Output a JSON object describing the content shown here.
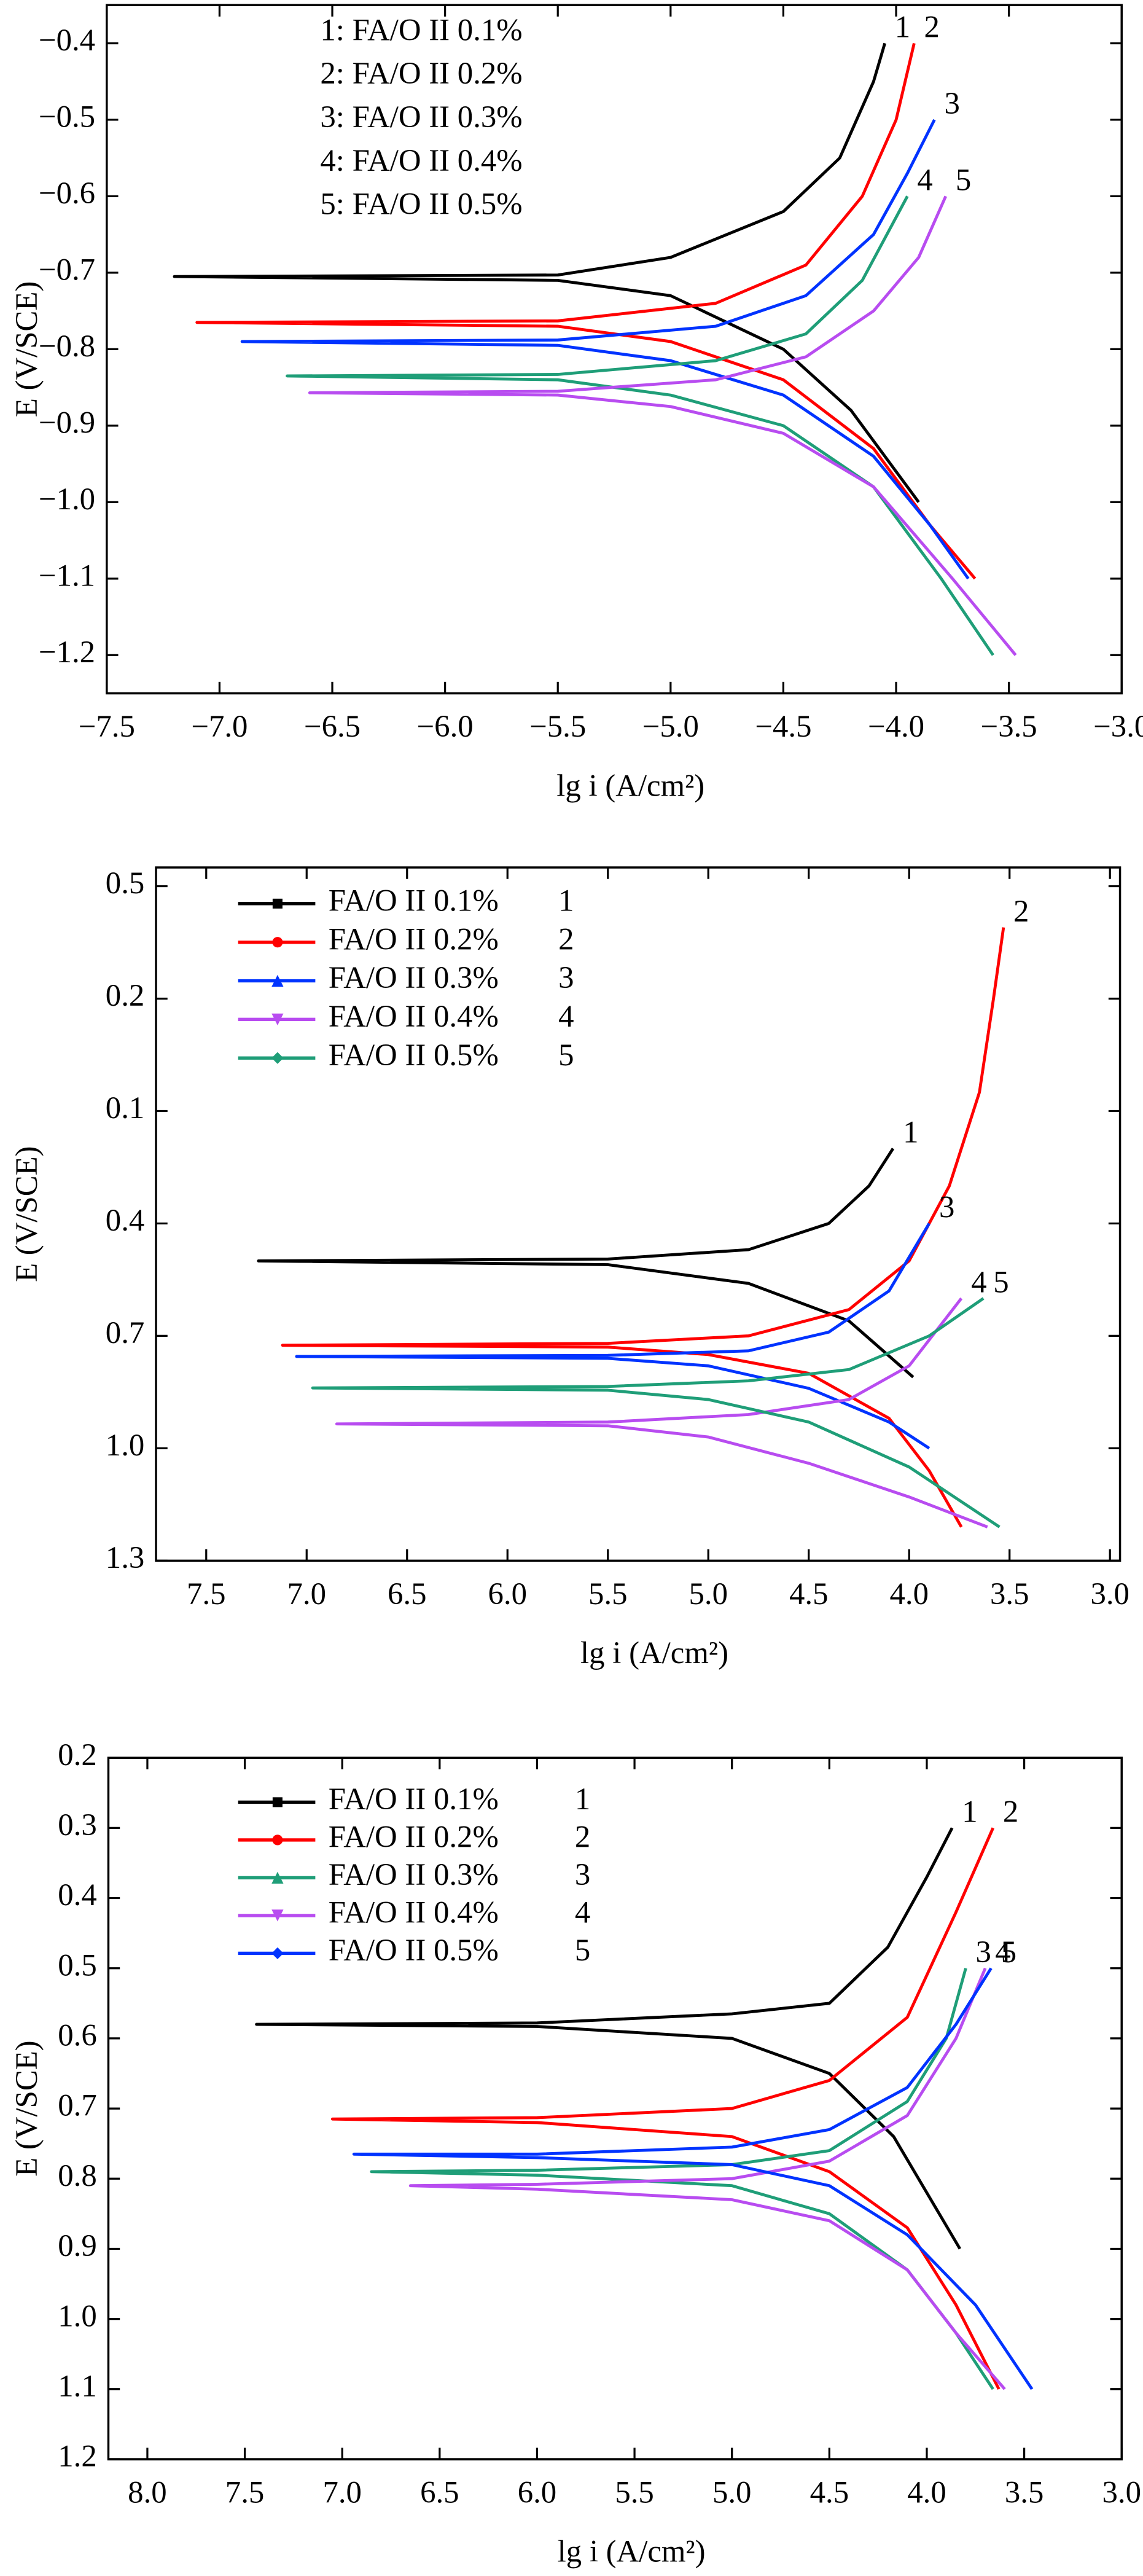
{
  "chart_data": [
    {
      "type": "line",
      "x_label": "lg i (A/cm²)",
      "y_label": "E (V/SCE)",
      "legend": "upper left",
      "legend_style": "text",
      "xlim": [
        -7.5,
        -3.0
      ],
      "ylim": [
        -1.25,
        -0.35
      ],
      "xticks": [
        {
          "value": -7.5,
          "label": "−7.5"
        },
        {
          "value": -7.0,
          "label": "−7.0"
        },
        {
          "value": -6.5,
          "label": "−6.5"
        },
        {
          "value": -6.0,
          "label": "−6.0"
        },
        {
          "value": -5.5,
          "label": "−5.5"
        },
        {
          "value": -5.0,
          "label": "−5.0"
        },
        {
          "value": -4.5,
          "label": "−4.5"
        },
        {
          "value": -4.0,
          "label": "−4.0"
        },
        {
          "value": -3.5,
          "label": "−3.5"
        },
        {
          "value": -3.0,
          "label": "−3.0"
        }
      ],
      "yticks": [
        {
          "value": -0.4,
          "label": "−0.4"
        },
        {
          "value": -0.5,
          "label": "−0.5"
        },
        {
          "value": -0.6,
          "label": "−0.6"
        },
        {
          "value": -0.7,
          "label": "−0.7"
        },
        {
          "value": -0.8,
          "label": "−0.8"
        },
        {
          "value": -0.9,
          "label": "−0.9"
        },
        {
          "value": -1.0,
          "label": "−1.0"
        },
        {
          "value": -1.1,
          "label": "−1.1"
        },
        {
          "value": -1.2,
          "label": "−1.2"
        }
      ],
      "series": [
        {
          "name": "1: FA/O II 0.1%",
          "label": "1",
          "color": "#000000",
          "x": [
            -3.9,
            -4.2,
            -4.5,
            -5.0,
            -5.5,
            -7.2,
            -5.5,
            -5.0,
            -4.5,
            -4.25,
            -4.1,
            -4.05
          ],
          "values": [
            -1.0,
            -0.88,
            -0.8,
            -0.73,
            -0.71,
            -0.705,
            -0.703,
            -0.68,
            -0.62,
            -0.55,
            -0.45,
            -0.4
          ]
        },
        {
          "name": "2: FA/O II 0.2%",
          "label": "2",
          "color": "#ff0000",
          "x": [
            -3.65,
            -3.85,
            -4.1,
            -4.5,
            -5.0,
            -5.5,
            -7.1,
            -5.5,
            -4.8,
            -4.4,
            -4.15,
            -4.0,
            -3.92
          ],
          "values": [
            -1.1,
            -1.03,
            -0.93,
            -0.84,
            -0.79,
            -0.77,
            -0.765,
            -0.763,
            -0.74,
            -0.69,
            -0.6,
            -0.5,
            -0.4
          ]
        },
        {
          "name": "3: FA/O II 0.3%",
          "label": "3",
          "color": "#0033ff",
          "x": [
            -3.68,
            -3.85,
            -4.1,
            -4.5,
            -5.0,
            -5.5,
            -6.9,
            -5.5,
            -4.8,
            -4.4,
            -4.1,
            -3.95,
            -3.83
          ],
          "values": [
            -1.1,
            -1.03,
            -0.94,
            -0.86,
            -0.815,
            -0.795,
            -0.79,
            -0.788,
            -0.77,
            -0.73,
            -0.65,
            -0.57,
            -0.5
          ]
        },
        {
          "name": "4: FA/O II 0.4%",
          "label": "4",
          "color": "#1f9e78",
          "x": [
            -3.57,
            -3.8,
            -4.1,
            -4.5,
            -5.0,
            -5.5,
            -6.7,
            -5.5,
            -4.8,
            -4.4,
            -4.15,
            -3.95
          ],
          "values": [
            -1.2,
            -1.1,
            -0.98,
            -0.9,
            -0.86,
            -0.84,
            -0.835,
            -0.833,
            -0.815,
            -0.78,
            -0.71,
            -0.6
          ]
        },
        {
          "name": "5: FA/O II 0.5%",
          "label": "5",
          "color": "#b84cf0",
          "x": [
            -3.47,
            -3.75,
            -4.1,
            -4.5,
            -5.0,
            -5.5,
            -6.6,
            -5.5,
            -4.8,
            -4.4,
            -4.1,
            -3.9,
            -3.78
          ],
          "values": [
            -1.2,
            -1.1,
            -0.98,
            -0.91,
            -0.875,
            -0.86,
            -0.857,
            -0.855,
            -0.84,
            -0.81,
            -0.75,
            -0.68,
            -0.6
          ]
        }
      ]
    },
    {
      "type": "line",
      "x_label": "lg i (A/cm²)",
      "y_label": "E (V/SCE)",
      "legend": "upper left",
      "legend_style": "line",
      "xlim": [
        -7.75,
        -2.95
      ],
      "ylim": [
        -1.3,
        0.55
      ],
      "xticks": [
        {
          "value": -7.5,
          "label": "7.5"
        },
        {
          "value": -7.0,
          "label": "7.0"
        },
        {
          "value": -6.5,
          "label": "6.5"
        },
        {
          "value": -6.0,
          "label": "6.0"
        },
        {
          "value": -5.5,
          "label": "5.5"
        },
        {
          "value": -5.0,
          "label": "5.0"
        },
        {
          "value": -4.5,
          "label": "4.5"
        },
        {
          "value": -4.0,
          "label": "4.0"
        },
        {
          "value": -3.5,
          "label": "3.5"
        },
        {
          "value": -3.0,
          "label": "3.0"
        }
      ],
      "yticks": [
        0.5,
        0.2,
        {
          "value": -0.1,
          "label": "0.1"
        },
        {
          "value": -0.4,
          "label": "0.4"
        },
        {
          "value": -0.7,
          "label": "0.7"
        },
        {
          "value": -1.0,
          "label": "1.0"
        },
        {
          "value": -1.3,
          "label": "1.3"
        }
      ],
      "series": [
        {
          "name": "FA/O II 0.1%",
          "label": "1",
          "color": "#000000",
          "marker": "square",
          "x": [
            -3.98,
            -4.3,
            -4.8,
            -5.5,
            -7.24,
            -5.5,
            -4.8,
            -4.4,
            -4.2,
            -4.08
          ],
          "values": [
            -0.81,
            -0.66,
            -0.56,
            -0.51,
            -0.5,
            -0.495,
            -0.47,
            -0.4,
            -0.3,
            -0.2
          ]
        },
        {
          "name": "FA/O II 0.2%",
          "label": "2",
          "color": "#ff0000",
          "marker": "circle",
          "x": [
            -3.74,
            -3.9,
            -4.1,
            -4.5,
            -5.0,
            -5.5,
            -7.12,
            -5.5,
            -4.8,
            -4.3,
            -4.0,
            -3.8,
            -3.65,
            -3.58,
            -3.53
          ],
          "values": [
            -1.21,
            -1.06,
            -0.92,
            -0.8,
            -0.75,
            -0.73,
            -0.725,
            -0.72,
            -0.7,
            -0.63,
            -0.5,
            -0.3,
            -0.05,
            0.2,
            0.39
          ]
        },
        {
          "name": "FA/O II 0.3%",
          "label": "3",
          "color": "#0033ff",
          "marker": "triangle-up",
          "x": [
            -3.9,
            -4.1,
            -4.5,
            -5.0,
            -5.5,
            -7.05,
            -5.5,
            -4.8,
            -4.4,
            -4.1,
            -3.9
          ],
          "values": [
            -1.0,
            -0.93,
            -0.84,
            -0.78,
            -0.76,
            -0.755,
            -0.752,
            -0.74,
            -0.69,
            -0.58,
            -0.4
          ]
        },
        {
          "name": "FA/O II 0.4%",
          "label": "4",
          "color": "#b84cf0",
          "marker": "triangle-down",
          "x": [
            -3.61,
            -4.0,
            -4.5,
            -5.0,
            -5.5,
            -6.85,
            -5.5,
            -4.8,
            -4.3,
            -4.0,
            -3.74
          ],
          "values": [
            -1.21,
            -1.13,
            -1.04,
            -0.97,
            -0.94,
            -0.935,
            -0.93,
            -0.91,
            -0.87,
            -0.78,
            -0.6
          ]
        },
        {
          "name": "FA/O II 0.5%",
          "label": "5",
          "color": "#1f9e78",
          "marker": "diamond",
          "x": [
            -3.55,
            -4.0,
            -4.5,
            -5.0,
            -5.5,
            -6.97,
            -5.5,
            -4.8,
            -4.3,
            -3.9,
            -3.63
          ],
          "values": [
            -1.21,
            -1.05,
            -0.93,
            -0.87,
            -0.845,
            -0.839,
            -0.835,
            -0.82,
            -0.79,
            -0.7,
            -0.6
          ]
        }
      ]
    },
    {
      "type": "line",
      "x_label": "lg i (A/cm²)",
      "y_label": "E (V/SCE)",
      "legend": "upper left",
      "legend_style": "line",
      "xlim": [
        -8.2,
        -3.0
      ],
      "ylim": [
        -1.2,
        -0.2
      ],
      "xticks": [
        {
          "value": -8.0,
          "label": "8.0"
        },
        {
          "value": -7.5,
          "label": "7.5"
        },
        {
          "value": -7.0,
          "label": "7.0"
        },
        {
          "value": -6.5,
          "label": "6.5"
        },
        {
          "value": -6.0,
          "label": "6.0"
        },
        {
          "value": -5.5,
          "label": "5.5"
        },
        {
          "value": -5.0,
          "label": "5.0"
        },
        {
          "value": -4.5,
          "label": "4.5"
        },
        {
          "value": -4.0,
          "label": "4.0"
        },
        {
          "value": -3.5,
          "label": "3.5"
        },
        {
          "value": -3.0,
          "label": "3.0"
        }
      ],
      "yticks": [
        {
          "value": -0.2,
          "label": "0.2"
        },
        {
          "value": -0.3,
          "label": "0.3"
        },
        {
          "value": -0.4,
          "label": "0.4"
        },
        {
          "value": -0.5,
          "label": "0.5"
        },
        {
          "value": -0.6,
          "label": "0.6"
        },
        {
          "value": -0.7,
          "label": "0.7"
        },
        {
          "value": -0.8,
          "label": "0.8"
        },
        {
          "value": -0.9,
          "label": "0.9"
        },
        {
          "value": -1.0,
          "label": "1.0"
        },
        {
          "value": -1.1,
          "label": "1.1"
        },
        {
          "value": -1.2,
          "label": "1.2"
        }
      ],
      "series": [
        {
          "name": "FA/O II 0.1%",
          "label": "1",
          "color": "#000000",
          "marker": "square",
          "x": [
            -3.83,
            -4.17,
            -4.5,
            -5.0,
            -6.0,
            -7.44,
            -6.0,
            -5.0,
            -4.5,
            -4.2,
            -4.0,
            -3.87
          ],
          "values": [
            -0.9,
            -0.74,
            -0.65,
            -0.6,
            -0.583,
            -0.58,
            -0.578,
            -0.565,
            -0.55,
            -0.47,
            -0.37,
            -0.3
          ]
        },
        {
          "name": "FA/O II 0.2%",
          "label": "2",
          "color": "#ff0000",
          "marker": "circle",
          "x": [
            -3.63,
            -3.85,
            -4.1,
            -4.5,
            -5.0,
            -6.0,
            -7.05,
            -6.0,
            -5.0,
            -4.5,
            -4.1,
            -3.85,
            -3.66
          ],
          "values": [
            -1.1,
            -0.98,
            -0.87,
            -0.79,
            -0.74,
            -0.72,
            -0.715,
            -0.713,
            -0.7,
            -0.66,
            -0.57,
            -0.42,
            -0.3
          ]
        },
        {
          "name": "FA/O II 0.3%",
          "label": "3",
          "color": "#1f9e78",
          "marker": "triangle-up",
          "x": [
            -3.66,
            -3.85,
            -4.1,
            -4.5,
            -5.0,
            -6.0,
            -6.85,
            -6.0,
            -5.0,
            -4.5,
            -4.1,
            -3.9,
            -3.8
          ],
          "values": [
            -1.1,
            -1.02,
            -0.93,
            -0.85,
            -0.81,
            -0.795,
            -0.79,
            -0.788,
            -0.78,
            -0.76,
            -0.69,
            -0.6,
            -0.5
          ]
        },
        {
          "name": "FA/O II 0.4%",
          "label": "4",
          "color": "#b84cf0",
          "marker": "triangle-down",
          "x": [
            -3.6,
            -3.85,
            -4.1,
            -4.5,
            -5.0,
            -6.0,
            -6.65,
            -6.0,
            -5.0,
            -4.5,
            -4.1,
            -3.85,
            -3.7
          ],
          "values": [
            -1.1,
            -1.02,
            -0.93,
            -0.86,
            -0.83,
            -0.815,
            -0.81,
            -0.808,
            -0.8,
            -0.775,
            -0.71,
            -0.6,
            -0.5
          ]
        },
        {
          "name": "FA/O II 0.5%",
          "label": "5",
          "color": "#0033ff",
          "marker": "diamond",
          "x": [
            -3.46,
            -3.75,
            -4.1,
            -4.5,
            -5.0,
            -6.0,
            -6.94,
            -6.0,
            -5.0,
            -4.5,
            -4.1,
            -3.85,
            -3.67
          ],
          "values": [
            -1.1,
            -0.98,
            -0.88,
            -0.81,
            -0.78,
            -0.77,
            -0.765,
            -0.765,
            -0.755,
            -0.73,
            -0.67,
            -0.58,
            -0.5
          ]
        }
      ]
    }
  ]
}
